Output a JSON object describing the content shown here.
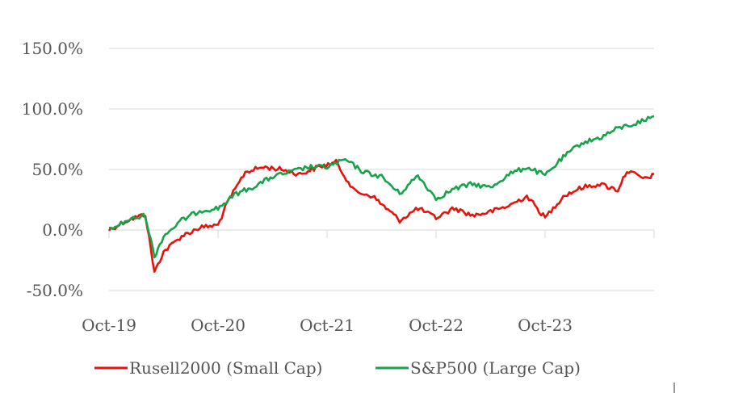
{
  "chart_data": {
    "type": "line",
    "title": "",
    "xlabel": "",
    "ylabel": "",
    "x_ticks": [
      "Oct-19",
      "Oct-20",
      "Oct-21",
      "Oct-22",
      "Oct-23"
    ],
    "y_ticks": [
      "150.0%",
      "100.0%",
      "50.0%",
      "0.0%",
      "-50.0%"
    ],
    "ylim": [
      -50,
      150
    ],
    "xlim": [
      "2019-10",
      "2024-10"
    ],
    "grid": "horizontal",
    "legend": "bottom",
    "series": [
      {
        "name": "Rusell2000 (Small Cap)",
        "color": "#e8120c",
        "x": [
          "2019-10",
          "2019-12",
          "2020-02",
          "2020-03",
          "2020-04",
          "2020-06",
          "2020-08",
          "2020-10",
          "2020-11",
          "2021-01",
          "2021-03",
          "2021-05",
          "2021-07",
          "2021-09",
          "2021-11",
          "2022-01",
          "2022-03",
          "2022-06",
          "2022-08",
          "2022-10",
          "2022-12",
          "2023-02",
          "2023-04",
          "2023-06",
          "2023-08",
          "2023-10",
          "2023-12",
          "2024-02",
          "2024-04",
          "2024-06",
          "2024-07",
          "2024-09",
          "2024-10"
        ],
        "values": [
          0,
          8,
          13,
          -35,
          -18,
          -5,
          2,
          4,
          22,
          48,
          52,
          50,
          46,
          52,
          56,
          32,
          28,
          8,
          18,
          10,
          18,
          12,
          15,
          20,
          28,
          10,
          28,
          35,
          38,
          33,
          49,
          42,
          46
        ]
      },
      {
        "name": "S&P500 (Large Cap)",
        "color": "#16a34a",
        "x": [
          "2019-10",
          "2019-12",
          "2020-02",
          "2020-03",
          "2020-04",
          "2020-06",
          "2020-08",
          "2020-10",
          "2020-12",
          "2021-02",
          "2021-04",
          "2021-06",
          "2021-08",
          "2021-10",
          "2021-12",
          "2022-02",
          "2022-04",
          "2022-06",
          "2022-08",
          "2022-10",
          "2022-12",
          "2023-02",
          "2023-04",
          "2023-06",
          "2023-08",
          "2023-10",
          "2023-12",
          "2024-02",
          "2024-04",
          "2024-06",
          "2024-08",
          "2024-10"
        ],
        "values": [
          0,
          8,
          12,
          -22,
          -5,
          8,
          16,
          18,
          30,
          36,
          44,
          48,
          52,
          52,
          58,
          48,
          44,
          30,
          45,
          26,
          34,
          38,
          35,
          46,
          52,
          45,
          60,
          72,
          76,
          84,
          88,
          94
        ]
      }
    ]
  }
}
